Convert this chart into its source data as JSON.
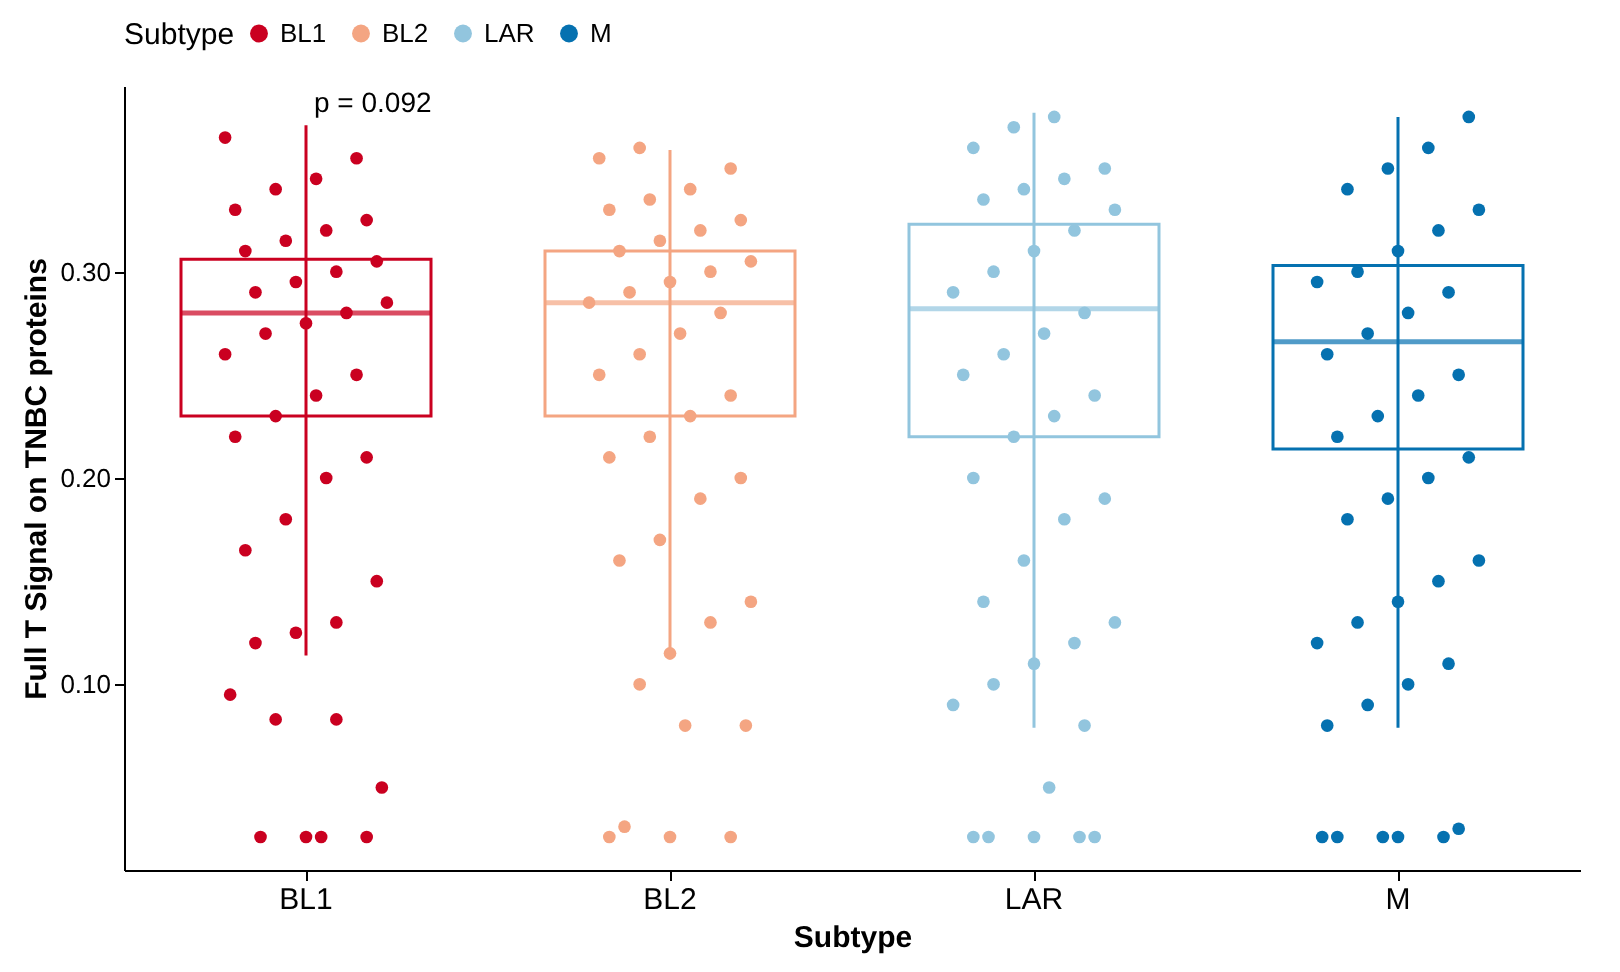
{
  "chart_data": {
    "type": "box",
    "xlabel": "Subtype",
    "ylabel": "Full T Signal on TNBC proteins",
    "legend_title": "Subtype",
    "legend": "top",
    "grid": false,
    "marker": "circle",
    "categories": [
      "BL1",
      "BL2",
      "LAR",
      "M"
    ],
    "colors": [
      "#ca0020",
      "#f4a582",
      "#92c5de",
      "#0571b0"
    ],
    "ylim": [
      0.01,
      0.39
    ],
    "yticks": [
      {
        "value": 0.1,
        "label": "0.10"
      },
      {
        "value": 0.2,
        "label": "0.20"
      },
      {
        "value": 0.3,
        "label": "0.30"
      }
    ],
    "annotations": [
      "p = 0.092"
    ],
    "boxes": [
      {
        "low": 0.114,
        "q1": 0.23,
        "median": 0.28,
        "q3": 0.306,
        "high": 0.371,
        "outliers": [
          0.095,
          0.083,
          0.083,
          0.05,
          0.026,
          0.026,
          0.026,
          0.026
        ]
      },
      {
        "low": 0.112,
        "q1": 0.23,
        "median": 0.285,
        "q3": 0.31,
        "high": 0.359,
        "outliers": [
          0.1,
          0.08,
          0.08,
          0.031,
          0.026,
          0.026,
          0.026
        ]
      },
      {
        "low": 0.079,
        "q1": 0.22,
        "median": 0.282,
        "q3": 0.323,
        "high": 0.377,
        "outliers": [
          0.05,
          0.026,
          0.026,
          0.026,
          0.026,
          0.026
        ]
      },
      {
        "low": 0.079,
        "q1": 0.214,
        "median": 0.266,
        "q3": 0.303,
        "high": 0.375,
        "outliers": [
          0.03,
          0.026,
          0.026,
          0.026,
          0.026,
          0.026
        ]
      }
    ],
    "series": [
      {
        "name": "BL1",
        "color": "#ca0020",
        "type": "scatter",
        "x": [
          "BL1",
          "BL1",
          "BL1",
          "BL1",
          "BL1",
          "BL1",
          "BL1",
          "BL1",
          "BL1",
          "BL1",
          "BL1",
          "BL1",
          "BL1",
          "BL1",
          "BL1",
          "BL1",
          "BL1",
          "BL1",
          "BL1",
          "BL1",
          "BL1",
          "BL1",
          "BL1",
          "BL1",
          "BL1",
          "BL1",
          "BL1",
          "BL1",
          "BL1",
          "BL1"
        ],
        "values": [
          0.365,
          0.355,
          0.345,
          0.34,
          0.33,
          0.325,
          0.32,
          0.315,
          0.31,
          0.305,
          0.3,
          0.295,
          0.29,
          0.285,
          0.28,
          0.275,
          0.27,
          0.26,
          0.25,
          0.24,
          0.23,
          0.22,
          0.21,
          0.2,
          0.18,
          0.165,
          0.15,
          0.13,
          0.125,
          0.12
        ]
      },
      {
        "name": "BL2",
        "color": "#f4a582",
        "type": "scatter",
        "x": [
          "BL2",
          "BL2",
          "BL2",
          "BL2",
          "BL2",
          "BL2",
          "BL2",
          "BL2",
          "BL2",
          "BL2",
          "BL2",
          "BL2",
          "BL2",
          "BL2",
          "BL2",
          "BL2",
          "BL2",
          "BL2",
          "BL2",
          "BL2",
          "BL2",
          "BL2",
          "BL2",
          "BL2",
          "BL2",
          "BL2",
          "BL2",
          "BL2",
          "BL2",
          "BL2"
        ],
        "values": [
          0.36,
          0.355,
          0.35,
          0.34,
          0.335,
          0.33,
          0.325,
          0.32,
          0.315,
          0.31,
          0.305,
          0.3,
          0.295,
          0.29,
          0.285,
          0.28,
          0.27,
          0.26,
          0.25,
          0.24,
          0.23,
          0.22,
          0.21,
          0.2,
          0.19,
          0.17,
          0.16,
          0.14,
          0.13,
          0.115
        ]
      },
      {
        "name": "LAR",
        "color": "#92c5de",
        "type": "scatter",
        "x": [
          "LAR",
          "LAR",
          "LAR",
          "LAR",
          "LAR",
          "LAR",
          "LAR",
          "LAR",
          "LAR",
          "LAR",
          "LAR",
          "LAR",
          "LAR",
          "LAR",
          "LAR",
          "LAR",
          "LAR",
          "LAR",
          "LAR",
          "LAR",
          "LAR",
          "LAR",
          "LAR",
          "LAR",
          "LAR",
          "LAR",
          "LAR",
          "LAR",
          "LAR",
          "LAR"
        ],
        "values": [
          0.375,
          0.37,
          0.36,
          0.35,
          0.345,
          0.34,
          0.335,
          0.33,
          0.32,
          0.31,
          0.3,
          0.29,
          0.28,
          0.27,
          0.26,
          0.25,
          0.24,
          0.23,
          0.22,
          0.2,
          0.19,
          0.18,
          0.16,
          0.14,
          0.13,
          0.12,
          0.11,
          0.1,
          0.09,
          0.08
        ]
      },
      {
        "name": "M",
        "color": "#0571b0",
        "type": "scatter",
        "x": [
          "M",
          "M",
          "M",
          "M",
          "M",
          "M",
          "M",
          "M",
          "M",
          "M",
          "M",
          "M",
          "M",
          "M",
          "M",
          "M",
          "M",
          "M",
          "M",
          "M",
          "M",
          "M",
          "M",
          "M",
          "M",
          "M",
          "M",
          "M",
          "M",
          "M"
        ],
        "values": [
          0.375,
          0.36,
          0.35,
          0.34,
          0.33,
          0.32,
          0.31,
          0.3,
          0.295,
          0.29,
          0.28,
          0.27,
          0.26,
          0.25,
          0.24,
          0.23,
          0.22,
          0.21,
          0.2,
          0.19,
          0.18,
          0.16,
          0.15,
          0.14,
          0.13,
          0.12,
          0.11,
          0.1,
          0.09,
          0.08
        ]
      }
    ]
  }
}
